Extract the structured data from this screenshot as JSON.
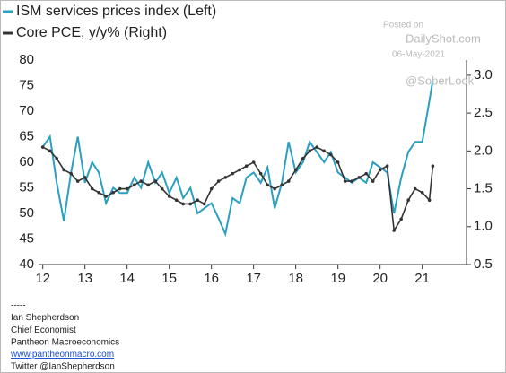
{
  "chart_data": {
    "type": "line",
    "watermark": [
      "Posted on",
      "DailyShot.com",
      "06-May-2021",
      "@SoberLook"
    ],
    "footer": [
      "-----",
      "Ian Shepherdson",
      "Chief Economist",
      "Pantheon Macroeconomics",
      "www.pantheonmacro.com",
      "Twitter @IanShepherdson"
    ],
    "x": [
      12.0,
      12.17,
      12.33,
      12.5,
      12.67,
      12.83,
      13.0,
      13.17,
      13.33,
      13.5,
      13.67,
      13.83,
      14.0,
      14.17,
      14.33,
      14.5,
      14.67,
      14.83,
      15.0,
      15.17,
      15.33,
      15.5,
      15.67,
      15.83,
      16.0,
      16.17,
      16.33,
      16.5,
      16.67,
      16.83,
      17.0,
      17.17,
      17.33,
      17.5,
      17.67,
      17.83,
      18.0,
      18.17,
      18.33,
      18.5,
      18.67,
      18.83,
      19.0,
      19.17,
      19.33,
      19.5,
      19.67,
      19.83,
      20.0,
      20.17,
      20.33,
      20.5,
      20.67,
      20.83,
      21.0,
      21.17,
      21.25
    ],
    "series": [
      {
        "name": "ISM services prices index (Left)",
        "color": "#2a9fc0",
        "axis": "y",
        "values": [
          63,
          65,
          56,
          48.5,
          58,
          65,
          56,
          60,
          58,
          52,
          55,
          54,
          54,
          57,
          55,
          60,
          56,
          58,
          54,
          57,
          53,
          55,
          50,
          51,
          52,
          49,
          46,
          53,
          52,
          57,
          58,
          56,
          59,
          51,
          56,
          64,
          58,
          60,
          64,
          62,
          60,
          62,
          58,
          57,
          56,
          57,
          56,
          60,
          59,
          58,
          50,
          57,
          62,
          64,
          64,
          72,
          76
        ]
      },
      {
        "name": "Core PCE, y/y% (Right)",
        "color": "#333333",
        "axis": "y2",
        "values": [
          2.05,
          2.0,
          1.9,
          1.75,
          1.7,
          1.6,
          1.65,
          1.5,
          1.45,
          1.4,
          1.45,
          1.5,
          1.5,
          1.55,
          1.6,
          1.55,
          1.6,
          1.5,
          1.4,
          1.35,
          1.3,
          1.3,
          1.35,
          1.3,
          1.5,
          1.6,
          1.65,
          1.7,
          1.75,
          1.8,
          1.85,
          1.7,
          1.55,
          1.5,
          1.55,
          1.6,
          1.75,
          1.9,
          2.0,
          2.05,
          2.0,
          1.95,
          1.85,
          1.6,
          1.6,
          1.65,
          1.7,
          1.6,
          1.75,
          1.8,
          0.95,
          1.1,
          1.35,
          1.5,
          1.45,
          1.35,
          1.8
        ]
      }
    ],
    "xlim": [
      11.9,
      22.05
    ],
    "xticks": [
      12,
      13,
      14,
      15,
      16,
      17,
      18,
      19,
      20,
      21
    ],
    "ylim": [
      40,
      80
    ],
    "yticks": [
      40,
      45,
      50,
      55,
      60,
      65,
      70,
      75,
      80
    ],
    "y2lim": [
      0.5,
      3.2
    ],
    "y2ticks": [
      0.5,
      {
        "value": 1,
        "label": "1.0"
      },
      1.5,
      {
        "value": 2,
        "label": "2.0"
      },
      2.5,
      {
        "value": 3,
        "label": "3.0"
      }
    ]
  }
}
